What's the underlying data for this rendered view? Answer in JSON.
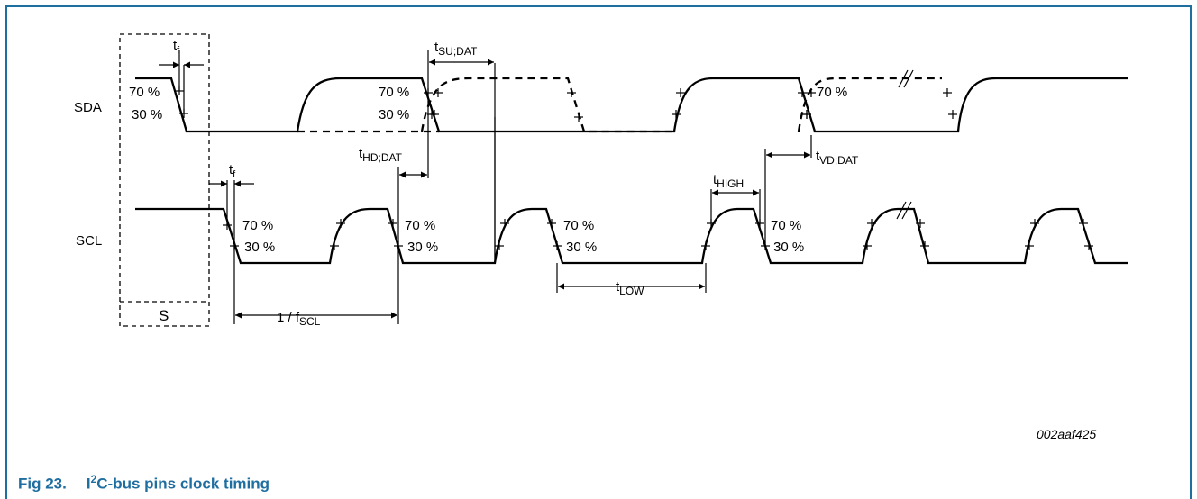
{
  "signals": {
    "sda": "SDA",
    "scl": "SCL"
  },
  "levels": {
    "high": "70 %",
    "low": "30 %"
  },
  "timing": {
    "tf": {
      "t": "t",
      "sub": "f"
    },
    "tsu_dat": {
      "t": "t",
      "sub": "SU;DAT"
    },
    "thd_dat": {
      "t": "t",
      "sub": "HD;DAT"
    },
    "tvd_dat": {
      "t": "t",
      "sub": "VD;DAT"
    },
    "thigh": {
      "t": "t",
      "sub": "HIGH"
    },
    "tlow": {
      "t": "t",
      "sub": "LOW"
    },
    "period": {
      "prefix": "1 / f",
      "sub": "SCL"
    }
  },
  "start_label": "S",
  "figure_code": "002aaf425",
  "caption": {
    "number": "Fig 23.",
    "pre": "I",
    "sup": "2",
    "post": "C-bus pins clock timing"
  },
  "colors": {
    "caption": "#1f6ea0",
    "frame": "#1f6ea0",
    "line": "#000000"
  }
}
